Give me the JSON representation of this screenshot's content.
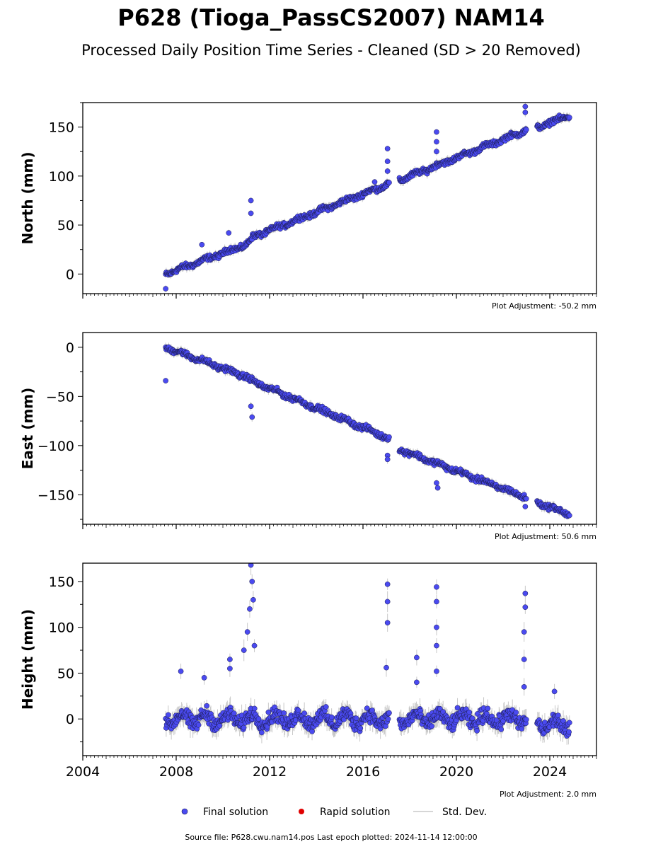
{
  "chart_data": {
    "type": "scatter",
    "title": "P628 (Tioga_PassCS2007) NAM14",
    "subtitle": "Processed Daily Position Time Series - Cleaned (SD > 20 Removed)",
    "xlim": [
      2004,
      2026
    ],
    "x_ticks": [
      "2004",
      "2008",
      "2012",
      "2016",
      "2020",
      "2024"
    ],
    "x_tick_values": [
      2004,
      2008,
      2012,
      2016,
      2020,
      2024
    ],
    "colors": {
      "final": "#4a4af0",
      "rapid": "#e00000",
      "stddev": "#c8c8c8",
      "edge": "#1a1a4a"
    },
    "legend": {
      "final": "Final solution",
      "rapid": "Rapid solution",
      "stddev": "Std. Dev.",
      "placement": "bottom-center"
    },
    "panels": [
      {
        "ylabel": "North (mm)",
        "ylim": [
          -20,
          175
        ],
        "y_ticks": [
          "0",
          "50",
          "100",
          "150"
        ],
        "y_tick_values": [
          0,
          50,
          100,
          150
        ],
        "adjustment": "Plot Adjustment: -50.2 mm",
        "trend": [
          [
            2007.55,
            0
          ],
          [
            2011.0,
            30
          ],
          [
            2011.3,
            38
          ],
          [
            2017.1,
            92
          ],
          [
            2017.6,
            96
          ],
          [
            2022.9,
            146
          ],
          [
            2023.5,
            150
          ],
          [
            2024.85,
            162
          ]
        ],
        "events": [
          {
            "x": 2007.55,
            "y": -15
          },
          {
            "x": 2009.1,
            "y": 30
          },
          {
            "x": 2010.25,
            "y": 42
          },
          {
            "x": 2011.2,
            "y": 75
          },
          {
            "x": 2011.2,
            "y": 62
          },
          {
            "x": 2016.5,
            "y": 94
          },
          {
            "x": 2017.05,
            "y": 128
          },
          {
            "x": 2017.05,
            "y": 115
          },
          {
            "x": 2017.05,
            "y": 105
          },
          {
            "x": 2019.15,
            "y": 145
          },
          {
            "x": 2019.15,
            "y": 135
          },
          {
            "x": 2019.15,
            "y": 125
          },
          {
            "x": 2022.95,
            "y": 171
          },
          {
            "x": 2022.95,
            "y": 165
          }
        ]
      },
      {
        "ylabel": "East (mm)",
        "ylim": [
          -180,
          15
        ],
        "y_ticks": [
          "0",
          "−50",
          "−100",
          "−150"
        ],
        "y_tick_values": [
          0,
          -50,
          -100,
          -150
        ],
        "adjustment": "Plot Adjustment: 50.6 mm",
        "trend": [
          [
            2007.55,
            0
          ],
          [
            2011.0,
            -30
          ],
          [
            2011.3,
            -35
          ],
          [
            2017.05,
            -92
          ],
          [
            2017.6,
            -104
          ],
          [
            2022.9,
            -152
          ],
          [
            2023.5,
            -158
          ],
          [
            2024.85,
            -170
          ]
        ],
        "events": [
          {
            "x": 2007.55,
            "y": -34
          },
          {
            "x": 2011.2,
            "y": -60
          },
          {
            "x": 2011.25,
            "y": -71
          },
          {
            "x": 2017.05,
            "y": -110
          },
          {
            "x": 2017.05,
            "y": -114
          },
          {
            "x": 2019.15,
            "y": -138
          },
          {
            "x": 2019.2,
            "y": -143
          },
          {
            "x": 2022.95,
            "y": -162
          }
        ]
      },
      {
        "ylabel": "Height (mm)",
        "ylim": [
          -40,
          170
        ],
        "y_ticks": [
          "0",
          "50",
          "100",
          "150"
        ],
        "y_tick_values": [
          0,
          50,
          100,
          150
        ],
        "adjustment": "Plot Adjustment: 2.0 mm",
        "trend": [
          [
            2007.55,
            0
          ],
          [
            2017.1,
            0
          ],
          [
            2017.6,
            0
          ],
          [
            2022.9,
            0
          ],
          [
            2023.5,
            -5
          ],
          [
            2024.85,
            -8
          ]
        ],
        "events": [
          {
            "x": 2008.2,
            "y": 52
          },
          {
            "x": 2009.2,
            "y": 45
          },
          {
            "x": 2010.3,
            "y": 65
          },
          {
            "x": 2010.3,
            "y": 55
          },
          {
            "x": 2010.9,
            "y": 75
          },
          {
            "x": 2011.05,
            "y": 95
          },
          {
            "x": 2011.15,
            "y": 120
          },
          {
            "x": 2011.2,
            "y": 168
          },
          {
            "x": 2011.25,
            "y": 150
          },
          {
            "x": 2011.3,
            "y": 130
          },
          {
            "x": 2011.35,
            "y": 80
          },
          {
            "x": 2017.05,
            "y": 147
          },
          {
            "x": 2017.05,
            "y": 128
          },
          {
            "x": 2017.05,
            "y": 105
          },
          {
            "x": 2017.0,
            "y": 56
          },
          {
            "x": 2018.3,
            "y": 67
          },
          {
            "x": 2018.3,
            "y": 40
          },
          {
            "x": 2019.15,
            "y": 144
          },
          {
            "x": 2019.15,
            "y": 128
          },
          {
            "x": 2019.15,
            "y": 100
          },
          {
            "x": 2019.15,
            "y": 80
          },
          {
            "x": 2019.15,
            "y": 52
          },
          {
            "x": 2022.95,
            "y": 137
          },
          {
            "x": 2022.95,
            "y": 122
          },
          {
            "x": 2022.9,
            "y": 95
          },
          {
            "x": 2022.9,
            "y": 65
          },
          {
            "x": 2022.9,
            "y": 35
          },
          {
            "x": 2024.2,
            "y": 30
          }
        ]
      }
    ],
    "footer": "Source file: P628.cwu.nam14.pos  Last epoch plotted: 2024-11-14 12:00:00"
  }
}
